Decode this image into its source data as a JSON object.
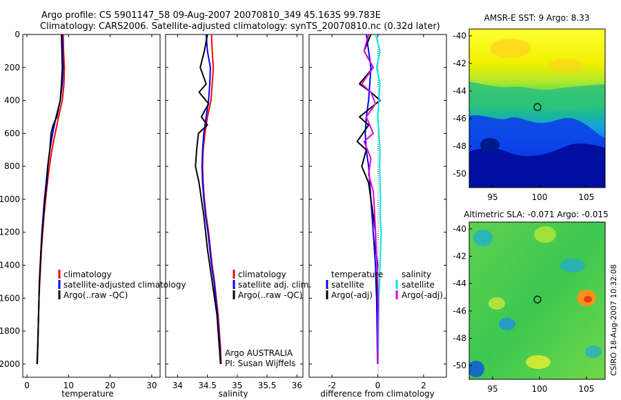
{
  "header": {
    "title_line1": "Argo profile: CS 5901147_58 09-Aug-2007 20070810_349 45.163S 99.783E",
    "title_line2": "Climatology: CARS2006. Satellite-adjusted climatology: synTS_20070810.nc (0.32d later)"
  },
  "colors": {
    "climatology": "#ff0000",
    "satellite": "#0000ff",
    "argo": "#000000",
    "salinity_satellite": "#00e5e5",
    "salinity_argo": "#e000e0"
  },
  "chart_data": [
    {
      "type": "line",
      "name": "temperature",
      "xlabel": "temperature",
      "ylabel": "",
      "xlim": [
        -1,
        32
      ],
      "ylim": [
        2080,
        0
      ],
      "xticks": [
        0,
        10,
        20,
        30
      ],
      "yticks": [
        0,
        200,
        400,
        600,
        800,
        1000,
        1200,
        1400,
        1600,
        1800,
        2000
      ],
      "legend": [
        "climatology",
        "satellite-adjusted climatology",
        "Argo(..raw -QC)"
      ],
      "series": [
        {
          "name": "climatology",
          "color": "#ff0000",
          "x": [
            8.7,
            8.8,
            9.0,
            8.9,
            8.5,
            7.6,
            6.8,
            6.0,
            5.4,
            4.9,
            4.5,
            4.1,
            3.8,
            3.5,
            3.3,
            3.1,
            2.9,
            2.8,
            2.7,
            2.6,
            2.5,
            2.5,
            2.4
          ],
          "y": [
            0,
            100,
            200,
            300,
            400,
            500,
            600,
            700,
            800,
            900,
            1000,
            1100,
            1200,
            1300,
            1400,
            1500,
            1600,
            1700,
            1800,
            1900,
            1950,
            1980,
            2000
          ]
        },
        {
          "name": "satellite-adjusted climatology",
          "color": "#0000ff",
          "x": [
            8.5,
            8.6,
            8.7,
            8.5,
            8.0,
            7.0,
            6.2,
            5.5,
            5.0,
            4.6,
            4.2,
            3.9,
            3.6,
            3.4,
            3.2,
            3.0,
            2.9,
            2.8,
            2.7,
            2.6,
            2.5,
            2.4
          ],
          "y": [
            0,
            100,
            200,
            300,
            400,
            500,
            600,
            700,
            800,
            900,
            1000,
            1100,
            1200,
            1300,
            1400,
            1500,
            1600,
            1700,
            1800,
            1900,
            1950,
            2000
          ]
        },
        {
          "name": "Argo(..raw -QC)",
          "color": "#000000",
          "x": [
            8.3,
            8.4,
            8.5,
            8.3,
            8.0,
            7.2,
            6.3,
            5.8,
            5.5,
            5.0,
            4.8,
            4.3,
            4.0,
            3.7,
            3.4,
            3.2,
            3.0,
            2.9,
            2.8,
            2.7,
            2.6,
            2.5
          ],
          "y": [
            0,
            100,
            200,
            300,
            400,
            500,
            550,
            600,
            700,
            800,
            900,
            1000,
            1100,
            1200,
            1300,
            1400,
            1500,
            1600,
            1700,
            1800,
            1900,
            2000
          ]
        }
      ]
    },
    {
      "type": "line",
      "name": "salinity",
      "xlabel": "salinity",
      "ylabel": "",
      "xlim": [
        33.8,
        36.1
      ],
      "ylim": [
        2080,
        0
      ],
      "xticks": [
        34,
        34.5,
        35,
        35.5,
        36
      ],
      "xticklabels": [
        "34",
        "34.5",
        "35",
        "35.5",
        "36"
      ],
      "legend": [
        "climatology",
        "satellite adj. clim.",
        "Argo(..raw -QC)"
      ],
      "annotation": [
        "Argo AUSTRALIA",
        "PI: Susan Wijffels"
      ],
      "series": [
        {
          "name": "climatology",
          "color": "#ff0000",
          "x": [
            34.57,
            34.58,
            34.6,
            34.58,
            34.56,
            34.5,
            34.46,
            34.43,
            34.42,
            34.43,
            34.45,
            34.48,
            34.52,
            34.55,
            34.58,
            34.62,
            34.65,
            34.68,
            34.7,
            34.72,
            34.73
          ],
          "y": [
            0,
            100,
            200,
            300,
            400,
            500,
            600,
            700,
            800,
            900,
            1000,
            1100,
            1200,
            1300,
            1400,
            1500,
            1600,
            1700,
            1800,
            1900,
            2000
          ]
        },
        {
          "name": "satellite adj. clim.",
          "color": "#0000ff",
          "x": [
            34.48,
            34.5,
            34.55,
            34.54,
            34.52,
            34.48,
            34.44,
            34.42,
            34.41,
            34.42,
            34.44,
            34.47,
            34.51,
            34.54,
            34.57,
            34.61,
            34.64,
            34.67,
            34.69,
            34.71,
            34.72
          ],
          "y": [
            0,
            100,
            200,
            300,
            400,
            500,
            600,
            700,
            800,
            900,
            1000,
            1100,
            1200,
            1300,
            1400,
            1500,
            1600,
            1700,
            1800,
            1900,
            2000
          ]
        },
        {
          "name": "Argo(..raw -QC)",
          "color": "#000000",
          "x": [
            34.5,
            34.45,
            34.38,
            34.48,
            34.36,
            34.52,
            34.4,
            34.5,
            34.35,
            34.32,
            34.3,
            34.36,
            34.4,
            34.44,
            34.47,
            34.5,
            34.54,
            34.58,
            34.62,
            34.66,
            34.69,
            34.72
          ],
          "y": [
            0,
            100,
            200,
            300,
            350,
            420,
            500,
            550,
            600,
            700,
            800,
            900,
            1000,
            1100,
            1200,
            1300,
            1400,
            1500,
            1600,
            1700,
            1850,
            2000
          ]
        }
      ]
    },
    {
      "type": "line",
      "name": "difference",
      "xlabel": "difference from climatology",
      "ylabel": "",
      "xlim": [
        -3,
        3
      ],
      "ylim": [
        2080,
        0
      ],
      "xticks": [
        -2,
        0,
        2
      ],
      "legend": [
        "temperature",
        "satellite",
        "Argo(-adj)",
        "salinity",
        "satellite",
        "Argo(-adj)"
      ],
      "series": [
        {
          "name": "temperature satellite",
          "color": "#0000ff",
          "x": [
            -0.5,
            -0.4,
            -0.3,
            -0.35,
            -0.4,
            -0.5,
            -0.55,
            -0.5,
            -0.4,
            -0.35,
            -0.3,
            -0.25,
            -0.2,
            -0.15,
            -0.1,
            -0.08,
            -0.05,
            -0.04,
            -0.03,
            -0.02,
            -0.01
          ],
          "y": [
            0,
            100,
            200,
            300,
            400,
            500,
            600,
            700,
            800,
            900,
            1000,
            1100,
            1200,
            1300,
            1400,
            1500,
            1600,
            1700,
            1800,
            1900,
            2000
          ]
        },
        {
          "name": "temperature Argo(-adj)",
          "color": "#000000",
          "x": [
            -0.3,
            -0.6,
            -0.2,
            -0.8,
            -0.3,
            0.1,
            -0.8,
            -0.4,
            -0.9,
            -0.5,
            -0.7,
            -0.4,
            -0.3,
            -0.2,
            -0.1,
            -0.1,
            0.0,
            -0.05,
            0.0,
            0.02,
            0.0,
            0.0
          ],
          "y": [
            0,
            100,
            200,
            300,
            350,
            400,
            500,
            550,
            650,
            700,
            800,
            900,
            1000,
            1100,
            1200,
            1300,
            1400,
            1500,
            1600,
            1700,
            1850,
            2000
          ]
        },
        {
          "name": "salinity satellite",
          "color": "#00e5e5",
          "x": [
            -0.1,
            0.1,
            -0.05,
            0.1,
            0.05,
            0.0,
            0.05,
            0.1,
            0.08,
            0.1,
            0.12,
            0.1,
            0.15,
            0.12,
            0.1,
            0.08,
            0.05,
            0.04,
            0.03,
            0.02,
            0.01
          ],
          "y": [
            0,
            100,
            200,
            300,
            400,
            500,
            600,
            700,
            800,
            900,
            1000,
            1100,
            1200,
            1300,
            1400,
            1500,
            1600,
            1700,
            1800,
            1900,
            2000
          ]
        },
        {
          "name": "salinity Argo(-adj)",
          "color": "#e000e0",
          "x": [
            -0.4,
            -0.6,
            -0.2,
            -0.7,
            -0.3,
            -0.1,
            -0.5,
            -0.2,
            -0.6,
            -0.3,
            -0.4,
            -0.2,
            -0.15,
            -0.1,
            -0.05,
            0.0,
            0.02,
            0.0,
            0.0,
            0.0
          ],
          "y": [
            0,
            100,
            200,
            300,
            350,
            420,
            500,
            600,
            650,
            750,
            850,
            950,
            1050,
            1200,
            1350,
            1500,
            1650,
            1800,
            1900,
            2000
          ]
        }
      ]
    },
    {
      "type": "heatmap",
      "name": "sst_map",
      "title": "AMSR-E SST: 9 Argo: 8.33",
      "xlim": [
        92.5,
        107
      ],
      "ylim": [
        -51,
        -39.5
      ],
      "xticks": [
        95,
        100,
        105
      ],
      "yticks": [
        -40,
        -42,
        -44,
        -46,
        -48,
        -50
      ],
      "marker": {
        "x": 99.783,
        "y": -45.163
      }
    },
    {
      "type": "heatmap",
      "name": "sla_map",
      "title": "Altimetric SLA: -0.071 Argo: -0.015",
      "xlim": [
        92.5,
        107
      ],
      "ylim": [
        -51,
        -39.5
      ],
      "xticks": [
        95,
        100,
        105
      ],
      "yticks": [
        -40,
        -42,
        -44,
        -46,
        -48,
        -50
      ],
      "marker": {
        "x": 99.783,
        "y": -45.163
      }
    }
  ],
  "side_label": "CSIRO 18-Aug-2007 10:32:08"
}
